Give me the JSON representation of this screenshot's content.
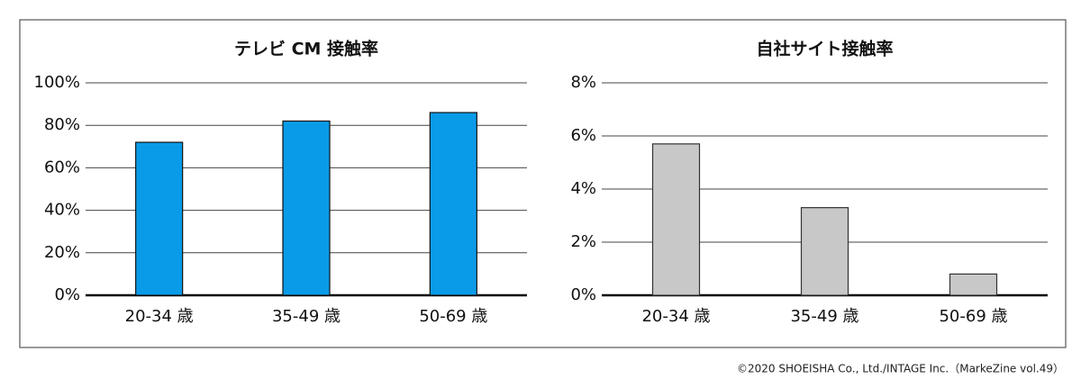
{
  "chart_data": [
    {
      "type": "bar",
      "title": "テレビ CM 接触率",
      "categories": [
        "20-34 歳",
        "35-49 歳",
        "50-69 歳"
      ],
      "values": [
        72,
        82,
        86
      ],
      "color": "#0a9be8",
      "ylim": [
        0,
        100
      ],
      "yticks": [
        {
          "value": 0,
          "label": "0%"
        },
        {
          "value": 20,
          "label": "20%"
        },
        {
          "value": 40,
          "label": "40%"
        },
        {
          "value": 60,
          "label": "60%"
        },
        {
          "value": 80,
          "label": "80%"
        },
        {
          "value": 100,
          "label": "100%"
        }
      ],
      "grid": true
    },
    {
      "type": "bar",
      "title": "自社サイト接触率",
      "categories": [
        "20-34 歳",
        "35-49 歳",
        "50-69 歳"
      ],
      "values": [
        5.7,
        3.3,
        0.8
      ],
      "color": "#c8c8c8",
      "ylim": [
        0,
        8
      ],
      "yticks": [
        {
          "value": 0,
          "label": "0%"
        },
        {
          "value": 2,
          "label": "2%"
        },
        {
          "value": 4,
          "label": "4%"
        },
        {
          "value": 6,
          "label": "6%"
        },
        {
          "value": 8,
          "label": "8%"
        }
      ],
      "grid": true
    }
  ],
  "footer": "©2020 SHOEISHA Co., Ltd./INTAGE Inc.（MarkeZine vol.49）"
}
